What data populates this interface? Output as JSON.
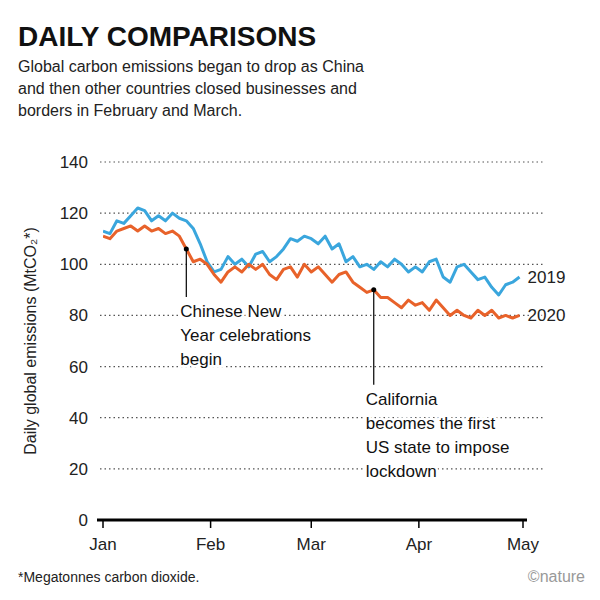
{
  "chart_data": {
    "type": "line",
    "title": "DAILY COMPARISONS",
    "subtitle": [
      "Global carbon emissions began to drop as China",
      "and then other countries closed businesses and",
      "borders in February and March."
    ],
    "y_label": "Daily global emissions (MtCO₂*)",
    "footnote": "*Megatonnes carbon dioxide.",
    "credit": "©nature",
    "x": [
      0,
      2,
      4,
      6,
      8,
      10,
      12,
      14,
      16,
      18,
      20,
      22,
      24,
      26,
      28,
      30,
      32,
      34,
      36,
      38,
      40,
      42,
      44,
      46,
      48,
      50,
      52,
      54,
      56,
      58,
      60,
      62,
      64,
      66,
      68,
      70,
      72,
      74,
      76,
      78,
      80,
      82,
      84,
      86,
      88,
      90,
      92,
      94,
      96,
      98,
      100,
      102,
      104,
      106,
      108,
      110,
      112,
      114,
      116,
      118,
      120
    ],
    "series": [
      {
        "name": "2019",
        "color": "#3aa6dd",
        "values": [
          113,
          112,
          117,
          116,
          119,
          122,
          121,
          117,
          119,
          117,
          120,
          118,
          117,
          114,
          108,
          101,
          97,
          98,
          103,
          100,
          102,
          99,
          104,
          105,
          101,
          103,
          106,
          110,
          109,
          111,
          110,
          108,
          111,
          106,
          108,
          101,
          103,
          99,
          100,
          98,
          101,
          99,
          102,
          100,
          97,
          99,
          97,
          101,
          102,
          95,
          93,
          99,
          100,
          97,
          94,
          95,
          91,
          88,
          92,
          93,
          95
        ]
      },
      {
        "name": "2020",
        "color": "#e8622a",
        "values": [
          111,
          110,
          113,
          114,
          115,
          113,
          115,
          113,
          114,
          112,
          113,
          111,
          106,
          101,
          102,
          100,
          96,
          93,
          97,
          99,
          97,
          100,
          98,
          100,
          96,
          94,
          98,
          99,
          95,
          100,
          97,
          99,
          96,
          93,
          96,
          97,
          93,
          91,
          89,
          90,
          87,
          87,
          85,
          83,
          86,
          84,
          85,
          82,
          86,
          83,
          80,
          82,
          80,
          79,
          82,
          80,
          82,
          79,
          80,
          79,
          80
        ]
      }
    ],
    "annotations": [
      {
        "x": 24,
        "text": [
          "Chinese New",
          "Year celebrations",
          "begin"
        ]
      },
      {
        "x": 78,
        "text": [
          "California",
          "becomes the first",
          "US state to impose",
          "lockdown"
        ]
      }
    ],
    "xlim": [
      0,
      121
    ],
    "xticks": [
      {
        "value": 0,
        "label": "Jan"
      },
      {
        "value": 31,
        "label": "Feb"
      },
      {
        "value": 60,
        "label": "Mar"
      },
      {
        "value": 91,
        "label": "Apr"
      },
      {
        "value": 121,
        "label": "May"
      }
    ],
    "ylim": [
      0,
      140
    ],
    "yticks": [
      0,
      20,
      40,
      60,
      80,
      100,
      120,
      140
    ],
    "grid": true
  }
}
